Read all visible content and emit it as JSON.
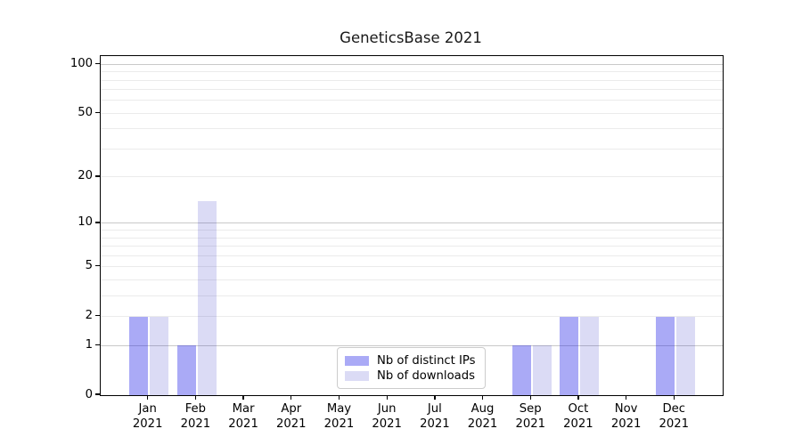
{
  "chart_data": {
    "type": "bar",
    "title": "GeneticsBase 2021",
    "categories": [
      "Jan",
      "Feb",
      "Mar",
      "Apr",
      "May",
      "Jun",
      "Jul",
      "Aug",
      "Sep",
      "Oct",
      "Nov",
      "Dec"
    ],
    "category_year": "2021",
    "series": [
      {
        "name": "Nb of distinct IPs",
        "solid_color": "#aaaaf6",
        "base_color": "#1919e7",
        "alpha": 0.37,
        "values": [
          2,
          1,
          0,
          0,
          0,
          0,
          0,
          0,
          1,
          2,
          0,
          2
        ]
      },
      {
        "name": "Nb of downloads",
        "solid_color": "#dbdbf5",
        "base_color": "#0f0fbc",
        "alpha": 0.15,
        "values": [
          2,
          14,
          0,
          0,
          0,
          0,
          0,
          0,
          1,
          2,
          0,
          2
        ]
      }
    ],
    "y_axis": {
      "scale": "log1p",
      "tick_labels": [
        0,
        1,
        2,
        5,
        10,
        20,
        50,
        100
      ],
      "major_gridlines": [
        1,
        10,
        100
      ],
      "minor_gridlines": [
        2,
        3,
        4,
        5,
        6,
        7,
        8,
        9,
        20,
        30,
        40,
        50,
        60,
        70,
        80,
        90
      ],
      "top_value": 112
    },
    "grid": {
      "major_color": "#c9c9c9",
      "minor_color": "#ebebeb"
    },
    "legend": {
      "position": "lower-center-inside"
    }
  }
}
